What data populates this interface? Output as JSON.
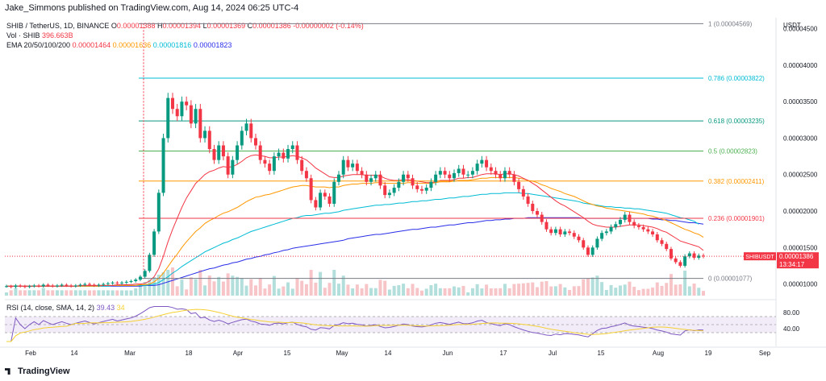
{
  "header": {
    "published": "Jake_Simmons published on TradingView.com, Aug 14, 2024 06:25 UTC-4",
    "currency": "USDT"
  },
  "info": {
    "symbol": "SHIB / TetherUS, 1D, BINANCE",
    "open_label": "O",
    "open": "0.00001388",
    "high_label": "H",
    "high": "0.00001394",
    "low_label": "L",
    "low": "0.00001369",
    "close_label": "C",
    "close": "0.00001386",
    "change": "-0.00000002 (-0.14%)",
    "vol_label": "Vol · SHIB",
    "vol_value": "396.663B",
    "ema_label": "EMA 20/50/100/200",
    "ema20": "0.00001464",
    "ema50": "0.00001636",
    "ema100": "0.00001816",
    "ema200": "0.00001823",
    "rsi_label": "RSI (14, close, SMA, 14, 2)",
    "rsi_value": "39.43",
    "rsi_value2": "34"
  },
  "price_badge": {
    "symbol": "SHIBUSDT",
    "price": "0.00001386",
    "countdown": "13:34:17"
  },
  "footer": {
    "logo": "TradingView"
  },
  "colors": {
    "up": "#089981",
    "down": "#f23645",
    "ema20": "#f23645",
    "ema50": "#ff9800",
    "ema100": "#00bcd4",
    "ema200": "#2a2ee8",
    "rsi": "#7e57c2",
    "rsi_ma": "#f5d033"
  },
  "chart_data": {
    "type": "candlestick",
    "x_ticks": [
      "Feb",
      "14",
      "Mar",
      "18",
      "Apr",
      "15",
      "May",
      "14",
      "Jun",
      "17",
      "Jul",
      "15",
      "Aug",
      "19",
      "Sep"
    ],
    "y_ticks": [
      "0.00004500",
      "0.00004000",
      "0.00003500",
      "0.00003000",
      "0.00002500",
      "0.00002000",
      "0.00001500",
      "0.00001000"
    ],
    "ylim": [
      8.3e-06,
      4.65e-05
    ],
    "fib_levels": [
      {
        "ratio": "1",
        "value": "0.00004569",
        "color": "#787b86"
      },
      {
        "ratio": "0.786",
        "value": "0.00003822",
        "color": "#00bcd4"
      },
      {
        "ratio": "0.618",
        "value": "0.00003235",
        "color": "#089981"
      },
      {
        "ratio": "0.5",
        "value": "0.00002823",
        "color": "#4caf50"
      },
      {
        "ratio": "0.382",
        "value": "0.00002411",
        "color": "#ff9800"
      },
      {
        "ratio": "0.236",
        "value": "0.00001901",
        "color": "#f23645"
      },
      {
        "ratio": "0",
        "value": "0.00001077",
        "color": "#787b86"
      }
    ],
    "fib_text": [
      "1 (0.00004569)",
      "0.786 (0.00003822)",
      "0.618 (0.00003235)",
      "0.5 (0.00002823)",
      "0.382 (0.00002411)",
      "0.236 (0.00001901)",
      "0 (0.00001077)"
    ],
    "rsi_ticks": [
      "80.00",
      "40.00"
    ],
    "rsi_range": [
      0,
      100
    ],
    "rsi_bands": [
      70,
      30
    ],
    "closes": [
      9.7e-06,
      9.6e-06,
      9.8e-06,
      9.7e-06,
      9.6e-06,
      9.7e-06,
      9.8e-06,
      9.7e-06,
      9.9e-06,
      9.8e-06,
      9.7e-06,
      9.8e-06,
      9.9e-06,
      9.8e-06,
      9.7e-06,
      9.8e-06,
      9.9e-06,
      1e-05,
      9.9e-06,
      9.8e-06,
      9.9e-06,
      1e-05,
      1.01e-05,
      1.02e-05,
      1.01e-05,
      1.02e-05,
      1.03e-05,
      1.04e-05,
      1.06e-05,
      1.1e-05,
      1.18e-05,
      1.4e-05,
      1.72e-05,
      2.25e-05,
      3e-05,
      3.55e-05,
      3.4e-05,
      3.3e-05,
      3.5e-05,
      3.45e-05,
      3.2e-05,
      3.4e-05,
      3e-05,
      3.1e-05,
      2.85e-05,
      2.7e-05,
      2.9e-05,
      2.75e-05,
      2.5e-05,
      2.7e-05,
      2.9e-05,
      3.1e-05,
      3.2e-05,
      3e-05,
      2.9e-05,
      2.7e-05,
      2.65e-05,
      2.55e-05,
      2.75e-05,
      2.8e-05,
      2.72e-05,
      2.85e-05,
      2.9e-05,
      2.7e-05,
      2.55e-05,
      2.45e-05,
      2.15e-05,
      2.05e-05,
      2.25e-05,
      2.2e-05,
      2.1e-05,
      2.4e-05,
      2.5e-05,
      2.7e-05,
      2.6e-05,
      2.65e-05,
      2.55e-05,
      2.5e-05,
      2.4e-05,
      2.45e-05,
      2.5e-05,
      2.35e-05,
      2.22e-05,
      2.25e-05,
      2.32e-05,
      2.4e-05,
      2.5e-05,
      2.45e-05,
      2.35e-05,
      2.3e-05,
      2.28e-05,
      2.32e-05,
      2.4e-05,
      2.5e-05,
      2.55e-05,
      2.5e-05,
      2.45e-05,
      2.52e-05,
      2.58e-05,
      2.5e-05,
      2.5e-05,
      2.55e-05,
      2.65e-05,
      2.7e-05,
      2.6e-05,
      2.55e-05,
      2.5e-05,
      2.45e-05,
      2.55e-05,
      2.5e-05,
      2.4e-05,
      2.3e-05,
      2.2e-05,
      2.1e-05,
      2e-05,
      1.95e-05,
      1.85e-05,
      1.75e-05,
      1.7e-05,
      1.75e-05,
      1.68e-05,
      1.72e-05,
      1.7e-05,
      1.65e-05,
      1.6e-05,
      1.5e-05,
      1.4e-05,
      1.5e-05,
      1.62e-05,
      1.7e-05,
      1.72e-05,
      1.78e-05,
      1.82e-05,
      1.88e-05,
      1.95e-05,
      1.85e-05,
      1.8e-05,
      1.78e-05,
      1.75e-05,
      1.72e-05,
      1.68e-05,
      1.6e-05,
      1.55e-05,
      1.48e-05,
      1.35e-05,
      1.3e-05,
      1.25e-05,
      1.38e-05,
      1.42e-05,
      1.36e-05,
      1.39e-05,
      1.38e-05
    ],
    "ema20": [
      9.7e-06,
      9.7e-06,
      9.7e-06,
      9.7e-06,
      9.7e-06,
      9.7e-06,
      9.7e-06,
      9.7e-06,
      9.7e-06,
      9.7e-06,
      9.7e-06,
      9.7e-06,
      9.7e-06,
      9.7e-06,
      9.7e-06,
      9.7e-06,
      9.8e-06,
      9.8e-06,
      9.8e-06,
      9.8e-06,
      9.8e-06,
      9.8e-06,
      9.8e-06,
      9.8e-06,
      9.9e-06,
      9.9e-06,
      9.9e-06,
      9.9e-06,
      1e-05,
      1e-05,
      1.01e-05,
      1.04e-05,
      1.1e-05,
      1.21e-05,
      1.38e-05,
      1.58e-05,
      1.75e-05,
      1.9e-05,
      2.05e-05,
      2.18e-05,
      2.28e-05,
      2.38e-05,
      2.44e-05,
      2.5e-05,
      2.54e-05,
      2.56e-05,
      2.59e-05,
      2.61e-05,
      2.6e-05,
      2.61e-05,
      2.64e-05,
      2.68e-05,
      2.73e-05,
      2.76e-05,
      2.77e-05,
      2.76e-05,
      2.75e-05,
      2.73e-05,
      2.73e-05,
      2.74e-05,
      2.74e-05,
      2.75e-05,
      2.76e-05,
      2.75e-05,
      2.73e-05,
      2.7e-05,
      2.65e-05,
      2.59e-05,
      2.55e-05,
      2.51e-05,
      2.47e-05,
      2.46e-05,
      2.46e-05,
      2.48e-05,
      2.49e-05,
      2.5e-05,
      2.5e-05,
      2.5e-05,
      2.49e-05,
      2.49e-05,
      2.49e-05,
      2.48e-05,
      2.45e-05,
      2.43e-05,
      2.42e-05,
      2.42e-05,
      2.43e-05,
      2.43e-05,
      2.42e-05,
      2.41e-05,
      2.4e-05,
      2.39e-05,
      2.39e-05,
      2.4e-05,
      2.42e-05,
      2.42e-05,
      2.42e-05,
      2.43e-05,
      2.45e-05,
      2.45e-05,
      2.46e-05,
      2.46e-05,
      2.48e-05,
      2.5e-05,
      2.51e-05,
      2.51e-05,
      2.51e-05,
      2.5e-05,
      2.51e-05,
      2.51e-05,
      2.5e-05,
      2.48e-05,
      2.45e-05,
      2.42e-05,
      2.38e-05,
      2.34e-05,
      2.29e-05,
      2.24e-05,
      2.19e-05,
      2.14e-05,
      2.1e-05,
      2.07e-05,
      2.03e-05,
      1.99e-05,
      1.95e-05,
      1.91e-05,
      1.86e-05,
      1.82e-05,
      1.8e-05,
      1.79e-05,
      1.78e-05,
      1.78e-05,
      1.78e-05,
      1.79e-05,
      1.8e-05,
      1.81e-05,
      1.81e-05,
      1.81e-05,
      1.8e-05,
      1.79e-05,
      1.78e-05,
      1.76e-05,
      1.73e-05,
      1.71e-05,
      1.67e-05,
      1.63e-05,
      1.59e-05,
      1.57e-05,
      1.55e-05,
      1.53e-05,
      1.51e-05,
      1.46e-05
    ],
    "ema50": [
      9.7e-06,
      9.7e-06,
      9.7e-06,
      9.7e-06,
      9.7e-06,
      9.7e-06,
      9.7e-06,
      9.7e-06,
      9.7e-06,
      9.7e-06,
      9.7e-06,
      9.7e-06,
      9.7e-06,
      9.7e-06,
      9.7e-06,
      9.7e-06,
      9.7e-06,
      9.7e-06,
      9.7e-06,
      9.7e-06,
      9.7e-06,
      9.8e-06,
      9.8e-06,
      9.8e-06,
      9.8e-06,
      9.8e-06,
      9.8e-06,
      9.8e-06,
      9.8e-06,
      9.9e-06,
      9.9e-06,
      1e-05,
      1.03e-05,
      1.08e-05,
      1.15e-05,
      1.24e-05,
      1.33e-05,
      1.41e-05,
      1.5e-05,
      1.58e-05,
      1.65e-05,
      1.72e-05,
      1.77e-05,
      1.83e-05,
      1.87e-05,
      1.9e-05,
      1.94e-05,
      1.97e-05,
      1.99e-05,
      2.02e-05,
      2.05e-05,
      2.09e-05,
      2.13e-05,
      2.16e-05,
      2.19e-05,
      2.2e-05,
      2.22e-05,
      2.23e-05,
      2.25e-05,
      2.27e-05,
      2.29e-05,
      2.31e-05,
      2.33e-05,
      2.34e-05,
      2.35e-05,
      2.35e-05,
      2.34e-05,
      2.33e-05,
      2.33e-05,
      2.33e-05,
      2.32e-05,
      2.33e-05,
      2.33e-05,
      2.35e-05,
      2.36e-05,
      2.37e-05,
      2.37e-05,
      2.38e-05,
      2.38e-05,
      2.38e-05,
      2.39e-05,
      2.39e-05,
      2.38e-05,
      2.38e-05,
      2.38e-05,
      2.38e-05,
      2.38e-05,
      2.39e-05,
      2.39e-05,
      2.38e-05,
      2.38e-05,
      2.38e-05,
      2.38e-05,
      2.39e-05,
      2.4e-05,
      2.4e-05,
      2.4e-05,
      2.41e-05,
      2.42e-05,
      2.42e-05,
      2.42e-05,
      2.43e-05,
      2.44e-05,
      2.45e-05,
      2.45e-05,
      2.46e-05,
      2.46e-05,
      2.46e-05,
      2.46e-05,
      2.46e-05,
      2.46e-05,
      2.45e-05,
      2.44e-05,
      2.42e-05,
      2.41e-05,
      2.39e-05,
      2.36e-05,
      2.34e-05,
      2.31e-05,
      2.29e-05,
      2.27e-05,
      2.24e-05,
      2.22e-05,
      2.2e-05,
      2.17e-05,
      2.14e-05,
      2.11e-05,
      2.09e-05,
      2.07e-05,
      2.06e-05,
      2.04e-05,
      2.03e-05,
      2.02e-05,
      2.01e-05,
      2e-05,
      1.99e-05,
      1.98e-05,
      1.97e-05,
      1.96e-05,
      1.94e-05,
      1.93e-05,
      1.91e-05,
      1.89e-05,
      1.87e-05,
      1.84e-05,
      1.81e-05,
      1.78e-05,
      1.75e-05,
      1.73e-05,
      1.7e-05,
      1.68e-05,
      1.64e-05
    ],
    "ema100": [
      9.7e-06,
      9.7e-06,
      9.7e-06,
      9.7e-06,
      9.7e-06,
      9.7e-06,
      9.7e-06,
      9.7e-06,
      9.7e-06,
      9.7e-06,
      9.7e-06,
      9.7e-06,
      9.7e-06,
      9.7e-06,
      9.7e-06,
      9.7e-06,
      9.7e-06,
      9.7e-06,
      9.7e-06,
      9.7e-06,
      9.7e-06,
      9.7e-06,
      9.7e-06,
      9.8e-06,
      9.8e-06,
      9.8e-06,
      9.8e-06,
      9.8e-06,
      9.8e-06,
      9.8e-06,
      9.8e-06,
      9.9e-06,
      1e-05,
      1.02e-05,
      1.06e-05,
      1.1e-05,
      1.15e-05,
      1.19e-05,
      1.24e-05,
      1.28e-05,
      1.32e-05,
      1.36e-05,
      1.4e-05,
      1.44e-05,
      1.47e-05,
      1.5e-05,
      1.53e-05,
      1.56e-05,
      1.58e-05,
      1.61e-05,
      1.63e-05,
      1.66e-05,
      1.69e-05,
      1.72e-05,
      1.74e-05,
      1.76e-05,
      1.78e-05,
      1.8e-05,
      1.82e-05,
      1.84e-05,
      1.86e-05,
      1.88e-05,
      1.9e-05,
      1.91e-05,
      1.93e-05,
      1.94e-05,
      1.94e-05,
      1.95e-05,
      1.96e-05,
      1.97e-05,
      1.97e-05,
      1.98e-05,
      1.99e-05,
      2.01e-05,
      2.02e-05,
      2.03e-05,
      2.04e-05,
      2.05e-05,
      2.06e-05,
      2.07e-05,
      2.08e-05,
      2.08e-05,
      2.09e-05,
      2.09e-05,
      2.1e-05,
      2.11e-05,
      2.11e-05,
      2.12e-05,
      2.13e-05,
      2.13e-05,
      2.14e-05,
      2.14e-05,
      2.15e-05,
      2.16e-05,
      2.16e-05,
      2.17e-05,
      2.18e-05,
      2.18e-05,
      2.19e-05,
      2.2e-05,
      2.2e-05,
      2.21e-05,
      2.22e-05,
      2.23e-05,
      2.23e-05,
      2.24e-05,
      2.24e-05,
      2.24e-05,
      2.25e-05,
      2.25e-05,
      2.25e-05,
      2.25e-05,
      2.24e-05,
      2.24e-05,
      2.23e-05,
      2.22e-05,
      2.21e-05,
      2.2e-05,
      2.19e-05,
      2.18e-05,
      2.17e-05,
      2.16e-05,
      2.15e-05,
      2.14e-05,
      2.13e-05,
      2.11e-05,
      2.1e-05,
      2.09e-05,
      2.08e-05,
      2.07e-05,
      2.06e-05,
      2.06e-05,
      2.05e-05,
      2.05e-05,
      2.04e-05,
      2.04e-05,
      2.03e-05,
      2.03e-05,
      2.02e-05,
      2.01e-05,
      2e-05,
      1.99e-05,
      1.98e-05,
      1.97e-05,
      1.95e-05,
      1.93e-05,
      1.91e-05,
      1.9e-05,
      1.88e-05,
      1.86e-05,
      1.82e-05
    ],
    "ema200": [
      9.7e-06,
      9.7e-06,
      9.7e-06,
      9.7e-06,
      9.7e-06,
      9.7e-06,
      9.7e-06,
      9.7e-06,
      9.7e-06,
      9.7e-06,
      9.7e-06,
      9.7e-06,
      9.7e-06,
      9.7e-06,
      9.7e-06,
      9.7e-06,
      9.7e-06,
      9.7e-06,
      9.7e-06,
      9.7e-06,
      9.7e-06,
      9.7e-06,
      9.7e-06,
      9.7e-06,
      9.7e-06,
      9.7e-06,
      9.7e-06,
      9.7e-06,
      9.7e-06,
      9.7e-06,
      9.8e-06,
      9.8e-06,
      9.8e-06,
      9.9e-06,
      1.01e-05,
      1.03e-05,
      1.05e-05,
      1.07e-05,
      1.09e-05,
      1.11e-05,
      1.13e-05,
      1.15e-05,
      1.17e-05,
      1.19e-05,
      1.21e-05,
      1.22e-05,
      1.24e-05,
      1.26e-05,
      1.27e-05,
      1.29e-05,
      1.3e-05,
      1.32e-05,
      1.34e-05,
      1.35e-05,
      1.37e-05,
      1.38e-05,
      1.4e-05,
      1.41e-05,
      1.43e-05,
      1.44e-05,
      1.46e-05,
      1.47e-05,
      1.49e-05,
      1.5e-05,
      1.51e-05,
      1.52e-05,
      1.53e-05,
      1.54e-05,
      1.55e-05,
      1.56e-05,
      1.57e-05,
      1.58e-05,
      1.59e-05,
      1.6e-05,
      1.62e-05,
      1.63e-05,
      1.64e-05,
      1.65e-05,
      1.66e-05,
      1.67e-05,
      1.68e-05,
      1.68e-05,
      1.69e-05,
      1.7e-05,
      1.71e-05,
      1.72e-05,
      1.73e-05,
      1.74e-05,
      1.75e-05,
      1.75e-05,
      1.76e-05,
      1.77e-05,
      1.78e-05,
      1.78e-05,
      1.79e-05,
      1.8e-05,
      1.81e-05,
      1.81e-05,
      1.82e-05,
      1.83e-05,
      1.84e-05,
      1.84e-05,
      1.85e-05,
      1.86e-05,
      1.87e-05,
      1.87e-05,
      1.88e-05,
      1.88e-05,
      1.89e-05,
      1.89e-05,
      1.9e-05,
      1.9e-05,
      1.9e-05,
      1.91e-05,
      1.91e-05,
      1.91e-05,
      1.91e-05,
      1.91e-05,
      1.91e-05,
      1.91e-05,
      1.91e-05,
      1.91e-05,
      1.91e-05,
      1.91e-05,
      1.91e-05,
      1.9e-05,
      1.9e-05,
      1.9e-05,
      1.9e-05,
      1.9e-05,
      1.9e-05,
      1.9e-05,
      1.9e-05,
      1.9e-05,
      1.9e-05,
      1.9e-05,
      1.9e-05,
      1.9e-05,
      1.9e-05,
      1.9e-05,
      1.89e-05,
      1.89e-05,
      1.88e-05,
      1.88e-05,
      1.87e-05,
      1.87e-05,
      1.86e-05,
      1.85e-05,
      1.84e-05,
      1.84e-05,
      1.83e-05,
      1.82e-05
    ]
  }
}
